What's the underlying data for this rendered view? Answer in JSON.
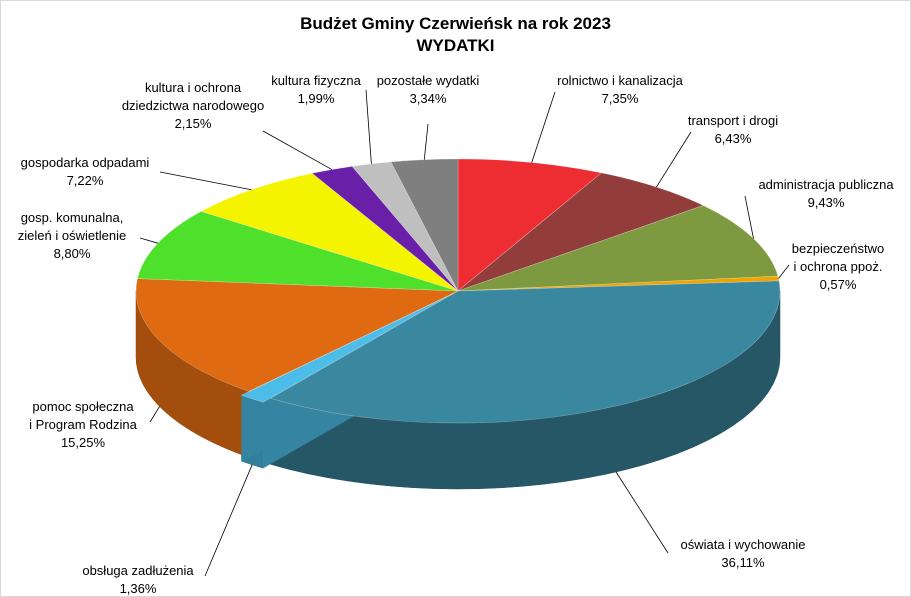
{
  "chart_data": {
    "type": "pie",
    "title": "Budżet Gminy Czerwieńsk na rok 2023",
    "subtitle": "WYDATKI",
    "slices": [
      {
        "label_lines": [
          "rolnictwo i kanalizacja",
          "7,35%"
        ],
        "value": 7.35,
        "color": "#ee2d32"
      },
      {
        "label_lines": [
          "transport i drogi",
          "6,43%"
        ],
        "value": 6.43,
        "color": "#923c3c"
      },
      {
        "label_lines": [
          "administracja publiczna",
          "9,43%"
        ],
        "value": 9.43,
        "color": "#7e9a41"
      },
      {
        "label_lines": [
          "bezpieczeństwo",
          "i ochrona ppoż.",
          "0,57%"
        ],
        "value": 0.57,
        "color": "#f0a400"
      },
      {
        "label_lines": [
          "oświata i wychowanie",
          "36,11%"
        ],
        "value": 36.11,
        "color": "#3a87a0"
      },
      {
        "label_lines": [
          "obsługa zadłużenia",
          "1,36%"
        ],
        "value": 1.36,
        "color": "#4bbde8"
      },
      {
        "label_lines": [
          "pomoc społeczna",
          "i Program Rodzina",
          "15,25%"
        ],
        "value": 15.25,
        "color": "#e06a12"
      },
      {
        "label_lines": [
          "gosp. komunalna,",
          "zieleń i oświetlenie",
          "8,80%"
        ],
        "value": 8.8,
        "color": "#4fe02c"
      },
      {
        "label_lines": [
          "gospodarka odpadami",
          "7,22%"
        ],
        "value": 7.22,
        "color": "#f4f400"
      },
      {
        "label_lines": [
          "kultura i ochrona",
          "dziedzictwa narodowego",
          "2,15%"
        ],
        "value": 2.15,
        "color": "#6a1fa8"
      },
      {
        "label_lines": [
          "kultura fizyczna",
          "1,99%"
        ],
        "value": 1.99,
        "color": "#bfbfbf"
      },
      {
        "label_lines": [
          "pozostałe wydatki",
          "3,34%"
        ],
        "value": 3.34,
        "color": "#7f7f7f"
      }
    ]
  }
}
